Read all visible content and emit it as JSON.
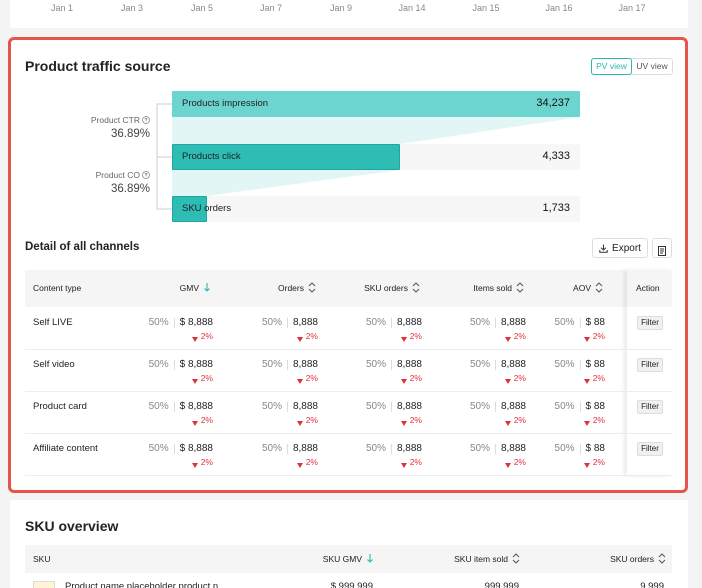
{
  "timeline": {
    "x_labels": [
      "Jan 1",
      "Jan 3",
      "Jan 5",
      "Jan 7",
      "Jan 9",
      "Jan 14",
      "Jan 15",
      "Jan 16",
      "Jan 17"
    ]
  },
  "traffic": {
    "title": "Product traffic source",
    "view_toggle": [
      "PV view",
      "UV view"
    ],
    "metrics": [
      {
        "label": "Product CTR",
        "value": "36.89%"
      },
      {
        "label": "Product CO",
        "value": "36.89%"
      }
    ],
    "funnel": [
      {
        "label": "Products impression",
        "value": "34,237"
      },
      {
        "label": "Products click",
        "value": "4,333"
      },
      {
        "label": "SKU orders",
        "value": "1,733"
      }
    ]
  },
  "channels": {
    "title": "Detail of all channels",
    "export": "Export",
    "columns": [
      "Content type",
      "GMV",
      "Orders",
      "SKU orders",
      "Items sold",
      "AOV",
      "Action"
    ],
    "rows": [
      {
        "name": "Self LIVE",
        "action": "Filter",
        "cells": [
          {
            "share": "50%",
            "value": "$ 8,888",
            "change": "2%"
          },
          {
            "share": "50%",
            "value": "8,888",
            "change": "2%"
          },
          {
            "share": "50%",
            "value": "8,888",
            "change": "2%"
          },
          {
            "share": "50%",
            "value": "8,888",
            "change": "2%"
          },
          {
            "share": "50%",
            "value": "$ 88",
            "change": "2%"
          }
        ]
      },
      {
        "name": "Self video",
        "action": "Filter",
        "cells": [
          {
            "share": "50%",
            "value": "$ 8,888",
            "change": "2%"
          },
          {
            "share": "50%",
            "value": "8,888",
            "change": "2%"
          },
          {
            "share": "50%",
            "value": "8,888",
            "change": "2%"
          },
          {
            "share": "50%",
            "value": "8,888",
            "change": "2%"
          },
          {
            "share": "50%",
            "value": "$ 88",
            "change": "2%"
          }
        ]
      },
      {
        "name": "Product card",
        "action": "Filter",
        "cells": [
          {
            "share": "50%",
            "value": "$ 8,888",
            "change": "2%"
          },
          {
            "share": "50%",
            "value": "8,888",
            "change": "2%"
          },
          {
            "share": "50%",
            "value": "8,888",
            "change": "2%"
          },
          {
            "share": "50%",
            "value": "8,888",
            "change": "2%"
          },
          {
            "share": "50%",
            "value": "$ 88",
            "change": "2%"
          }
        ]
      },
      {
        "name": "Affiliate content",
        "action": "Filter",
        "cells": [
          {
            "share": "50%",
            "value": "$ 8,888",
            "change": "2%"
          },
          {
            "share": "50%",
            "value": "8,888",
            "change": "2%"
          },
          {
            "share": "50%",
            "value": "8,888",
            "change": "2%"
          },
          {
            "share": "50%",
            "value": "8,888",
            "change": "2%"
          },
          {
            "share": "50%",
            "value": "$ 88",
            "change": "2%"
          }
        ]
      }
    ]
  },
  "sku": {
    "title": "SKU overview",
    "columns": [
      "SKU",
      "SKU GMV",
      "SKU item sold",
      "SKU orders"
    ],
    "rows": [
      {
        "name": "Product name placeholder product n...",
        "gmv": "$ 999,999",
        "sold": "999,999",
        "orders": "9,999"
      }
    ]
  }
}
